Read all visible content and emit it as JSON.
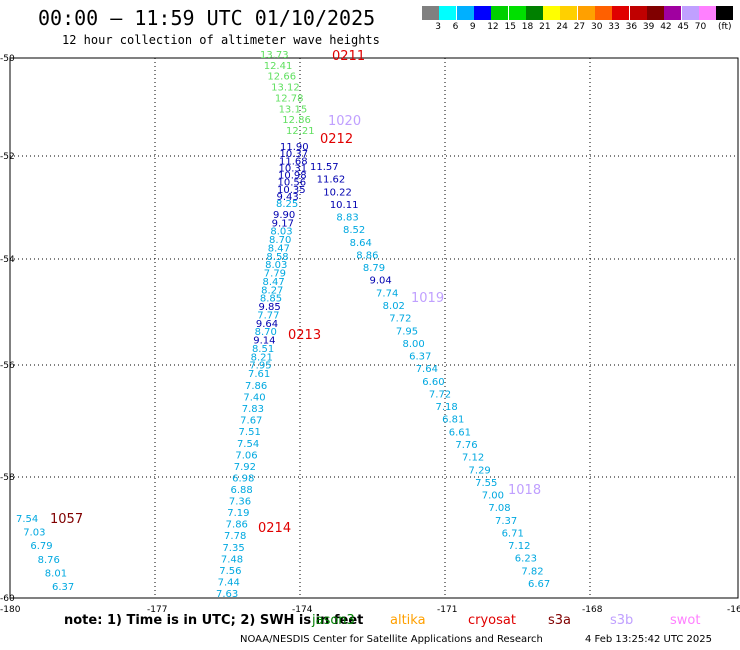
{
  "title": "00:00 — 11:59 UTC 01/10/2025",
  "subtitle": "12 hour collection of altimeter wave heights",
  "legend": {
    "unit": "(ft)",
    "colors": [
      "#808080",
      "#00ffff",
      "#00b0ff",
      "#0000ff",
      "#00d000",
      "#00e000",
      "#008000",
      "#ffff00",
      "#ffd000",
      "#ffa000",
      "#ff6000",
      "#e00000",
      "#c00000",
      "#800000",
      "#a000a0",
      "#c0a0ff",
      "#ff80ff",
      "#000000"
    ],
    "labels": [
      "3",
      "6",
      "9",
      "12",
      "15",
      "18",
      "21",
      "24",
      "27",
      "30",
      "33",
      "36",
      "39",
      "42",
      "45",
      "70"
    ]
  },
  "axes": {
    "x_labels": [
      "-180",
      "-177",
      "-174",
      "-171",
      "-168",
      "-16"
    ],
    "y_labels": [
      "-50",
      "-52",
      "-54",
      "-56",
      "-58",
      "-60"
    ]
  },
  "track_ids": [
    {
      "text": "0211",
      "color": "#e00000"
    },
    {
      "text": "1020",
      "color": "#c0a0ff"
    },
    {
      "text": "0212",
      "color": "#e00000"
    },
    {
      "text": "1019",
      "color": "#c0a0ff"
    },
    {
      "text": "0213",
      "color": "#e00000"
    },
    {
      "text": "1018",
      "color": "#c0a0ff"
    },
    {
      "text": "1057",
      "color": "#800000"
    },
    {
      "text": "0214",
      "color": "#e00000"
    }
  ],
  "swh_tracks": {
    "track_0211_green": [
      "13.73",
      "12.41",
      "12.66",
      "13.12",
      "12.78",
      "13.15",
      "12.86",
      "12.21"
    ],
    "track_0211_upper": [
      "11.90",
      "10.37",
      "11.68",
      "10.31",
      "10.98",
      "10.56",
      "10.35",
      "9.43",
      "8.25"
    ],
    "track_0211_mid": [
      "9.90",
      "9.17",
      "8.03",
      "8.70",
      "8.47",
      "8.58",
      "8.03",
      "7.79",
      "8.47",
      "8.27",
      "8.85",
      "9.85",
      "7.77",
      "9.64",
      "8.70",
      "9.14",
      "8.51",
      "8.21",
      "7.95",
      "7.61"
    ],
    "track_0211_lower": [
      "7.86",
      "7.40",
      "7.83",
      "7.67",
      "7.51",
      "7.54",
      "7.06",
      "7.92",
      "6.98",
      "6.88",
      "7.36",
      "7.19",
      "7.86",
      "7.78",
      "7.35",
      "7.48",
      "7.56",
      "7.44",
      "7.63"
    ],
    "track_0212": [
      "11.57",
      "11.62",
      "10.22",
      "10.11",
      "8.83",
      "8.52",
      "8.64",
      "8.86",
      "8.79",
      "9.04",
      "7.74",
      "8.02",
      "7.72",
      "7.95",
      "8.00",
      "6.37",
      "7.64",
      "6.60",
      "7.72",
      "7.18",
      "6.81",
      "6.61",
      "7.76",
      "7.12",
      "7.29",
      "7.55",
      "7.00",
      "7.08",
      "7.37",
      "6.71",
      "7.12",
      "6.23",
      "7.82",
      "6.67"
    ],
    "track_1057": [
      "7.54",
      "7.03",
      "6.79",
      "8.76",
      "8.01",
      "6.37"
    ]
  },
  "note": "note:  1) Time is in UTC;  2) SWH is in feet",
  "satellites": [
    {
      "name": "jason3",
      "color": "#008000"
    },
    {
      "name": "altika",
      "color": "#ffa000"
    },
    {
      "name": "cryosat",
      "color": "#e00000"
    },
    {
      "name": "s3a",
      "color": "#800000"
    },
    {
      "name": "s3b",
      "color": "#c0a0ff"
    },
    {
      "name": "swot",
      "color": "#ff80ff"
    }
  ],
  "credit": "NOAA/NESDIS Center for Satellite Applications and Research",
  "timestamp": "4 Feb 13:25:42 UTC 2025"
}
